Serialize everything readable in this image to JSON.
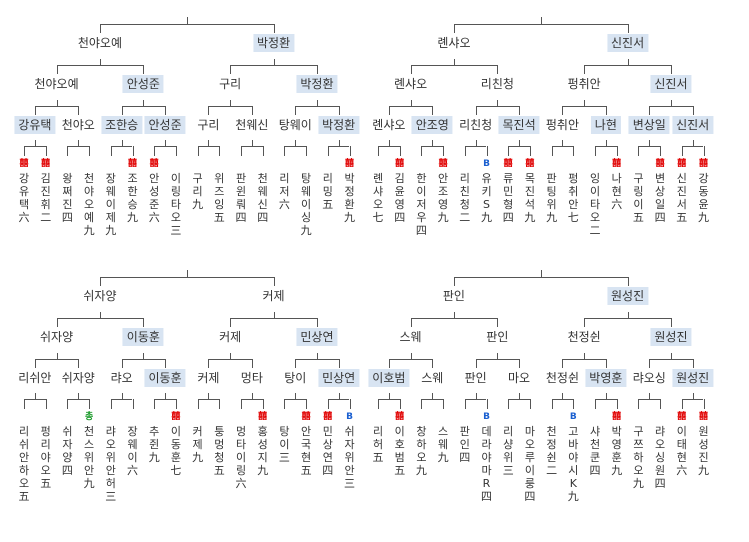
{
  "colors": {
    "highlight": "#d8e4f2",
    "line": "#555555",
    "icon_red": "#e00000",
    "icon_blue": "#1a5fd0",
    "icon_green": "#1a9a2a"
  },
  "icons": {
    "r": {
      "name": "red-seal-icon",
      "glyph": "囍"
    },
    "b": {
      "name": "blue-b-icon",
      "glyph": "B"
    },
    "g": {
      "name": "green-seal-icon",
      "glyph": "총"
    }
  },
  "brackets": [
    {
      "id": "top-left",
      "rounds": [
        [
          {
            "n": "천야오예",
            "hl": false
          },
          {
            "n": "박정환",
            "hl": true
          }
        ],
        [
          {
            "n": "천야오예",
            "hl": false
          },
          {
            "n": "안성준",
            "hl": true
          },
          {
            "n": "구리",
            "hl": false
          },
          {
            "n": "박정환",
            "hl": true
          }
        ],
        [
          {
            "n": "강유택",
            "hl": true
          },
          {
            "n": "천야오",
            "hl": false
          },
          {
            "n": "조한승",
            "hl": true
          },
          {
            "n": "안성준",
            "hl": true
          },
          {
            "n": "구리",
            "hl": false
          },
          {
            "n": "천웨신",
            "hl": false
          },
          {
            "n": "탕웨이",
            "hl": false
          },
          {
            "n": "박정환",
            "hl": true
          }
        ]
      ],
      "players": [
        {
          "text": "강유택六",
          "icon": "r"
        },
        {
          "text": "김진휘二",
          "icon": "r"
        },
        {
          "text": "왕쩌진四",
          "icon": ""
        },
        {
          "text": "천야오예九",
          "icon": ""
        },
        {
          "text": "장웨이제九",
          "icon": ""
        },
        {
          "text": "조한승九",
          "icon": "r"
        },
        {
          "text": "안성준六",
          "icon": "r"
        },
        {
          "text": "이링타오三",
          "icon": ""
        },
        {
          "text": "구리九",
          "icon": ""
        },
        {
          "text": "위즈잉五",
          "icon": ""
        },
        {
          "text": "판윈뤄四",
          "icon": ""
        },
        {
          "text": "천웨신四",
          "icon": ""
        },
        {
          "text": "리저六",
          "icon": ""
        },
        {
          "text": "탕웨이싱九",
          "icon": ""
        },
        {
          "text": "리밍五",
          "icon": ""
        },
        {
          "text": "박정환九",
          "icon": "r"
        }
      ]
    },
    {
      "id": "top-right",
      "rounds": [
        [
          {
            "n": "롄샤오",
            "hl": false
          },
          {
            "n": "신진서",
            "hl": true
          }
        ],
        [
          {
            "n": "롄샤오",
            "hl": false
          },
          {
            "n": "리친청",
            "hl": false
          },
          {
            "n": "펑취안",
            "hl": false
          },
          {
            "n": "신진서",
            "hl": true
          }
        ],
        [
          {
            "n": "롄샤오",
            "hl": false
          },
          {
            "n": "안조영",
            "hl": true
          },
          {
            "n": "리친청",
            "hl": false
          },
          {
            "n": "목진석",
            "hl": true
          },
          {
            "n": "펑취안",
            "hl": false
          },
          {
            "n": "나현",
            "hl": true
          },
          {
            "n": "변상일",
            "hl": true
          },
          {
            "n": "신진서",
            "hl": true
          }
        ]
      ],
      "players": [
        {
          "text": "롄샤오七",
          "icon": ""
        },
        {
          "text": "김윤영四",
          "icon": "r"
        },
        {
          "text": "한이저우四",
          "icon": ""
        },
        {
          "text": "안조영九",
          "icon": "r"
        },
        {
          "text": "리친청二",
          "icon": ""
        },
        {
          "text": "유키S九",
          "icon": "b"
        },
        {
          "text": "류민형四",
          "icon": "r"
        },
        {
          "text": "목진석九",
          "icon": "r"
        },
        {
          "text": "판팅위九",
          "icon": ""
        },
        {
          "text": "펑취안七",
          "icon": ""
        },
        {
          "text": "잉이타오二",
          "icon": ""
        },
        {
          "text": "나현六",
          "icon": "r"
        },
        {
          "text": "구링이五",
          "icon": ""
        },
        {
          "text": "변상일四",
          "icon": "r"
        },
        {
          "text": "신진서五",
          "icon": "r"
        },
        {
          "text": "강동윤九",
          "icon": "r"
        }
      ]
    },
    {
      "id": "bottom-left",
      "rounds": [
        [
          {
            "n": "쉬자양",
            "hl": false
          },
          {
            "n": "커제",
            "hl": false
          }
        ],
        [
          {
            "n": "쉬자양",
            "hl": false
          },
          {
            "n": "이동훈",
            "hl": true
          },
          {
            "n": "커제",
            "hl": false
          },
          {
            "n": "민상연",
            "hl": true
          }
        ],
        [
          {
            "n": "리쉬안",
            "hl": false
          },
          {
            "n": "쉬자양",
            "hl": false
          },
          {
            "n": "랴오",
            "hl": false
          },
          {
            "n": "이동훈",
            "hl": true
          },
          {
            "n": "커제",
            "hl": false
          },
          {
            "n": "멍타",
            "hl": false
          },
          {
            "n": "탕이",
            "hl": false
          },
          {
            "n": "민상연",
            "hl": true
          }
        ]
      ],
      "players": [
        {
          "text": "리쉬안하오五",
          "icon": ""
        },
        {
          "text": "펑리야오五",
          "icon": ""
        },
        {
          "text": "쉬자양四",
          "icon": ""
        },
        {
          "text": "천스위안九",
          "icon": "g"
        },
        {
          "text": "랴오위안허三",
          "icon": ""
        },
        {
          "text": "장웨이六",
          "icon": ""
        },
        {
          "text": "추쥔九",
          "icon": ""
        },
        {
          "text": "이동훈七",
          "icon": "r"
        },
        {
          "text": "커제九",
          "icon": ""
        },
        {
          "text": "퉁멍청五",
          "icon": ""
        },
        {
          "text": "멍타이링六",
          "icon": ""
        },
        {
          "text": "홍성지九",
          "icon": "r"
        },
        {
          "text": "탕이三",
          "icon": ""
        },
        {
          "text": "안국현五",
          "icon": "r"
        },
        {
          "text": "민상연四",
          "icon": "r"
        },
        {
          "text": "쉬자위안三",
          "icon": "b"
        }
      ]
    },
    {
      "id": "bottom-right",
      "rounds": [
        [
          {
            "n": "판인",
            "hl": false
          },
          {
            "n": "원성진",
            "hl": true
          }
        ],
        [
          {
            "n": "스웨",
            "hl": false
          },
          {
            "n": "판인",
            "hl": false
          },
          {
            "n": "천정쉰",
            "hl": false
          },
          {
            "n": "원성진",
            "hl": true
          }
        ],
        [
          {
            "n": "이호범",
            "hl": true
          },
          {
            "n": "스웨",
            "hl": false
          },
          {
            "n": "판인",
            "hl": false
          },
          {
            "n": "마오",
            "hl": false
          },
          {
            "n": "천정쉰",
            "hl": false
          },
          {
            "n": "박영훈",
            "hl": true
          },
          {
            "n": "랴오싱",
            "hl": false
          },
          {
            "n": "원성진",
            "hl": true
          }
        ]
      ],
      "players": [
        {
          "text": "리허五",
          "icon": ""
        },
        {
          "text": "이호범五",
          "icon": "r"
        },
        {
          "text": "창하오九",
          "icon": ""
        },
        {
          "text": "스웨九",
          "icon": ""
        },
        {
          "text": "판인四",
          "icon": ""
        },
        {
          "text": "데라야마R四",
          "icon": "b"
        },
        {
          "text": "리샹위三",
          "icon": ""
        },
        {
          "text": "마오루이룽四",
          "icon": ""
        },
        {
          "text": "천정쉰二",
          "icon": ""
        },
        {
          "text": "고바야시K九",
          "icon": "b"
        },
        {
          "text": "샤천쿤四",
          "icon": ""
        },
        {
          "text": "박영훈九",
          "icon": "r"
        },
        {
          "text": "구쯔하오九",
          "icon": ""
        },
        {
          "text": "랴오싱원四",
          "icon": ""
        },
        {
          "text": "이태현六",
          "icon": "r"
        },
        {
          "text": "원성진九",
          "icon": "r"
        }
      ]
    }
  ]
}
